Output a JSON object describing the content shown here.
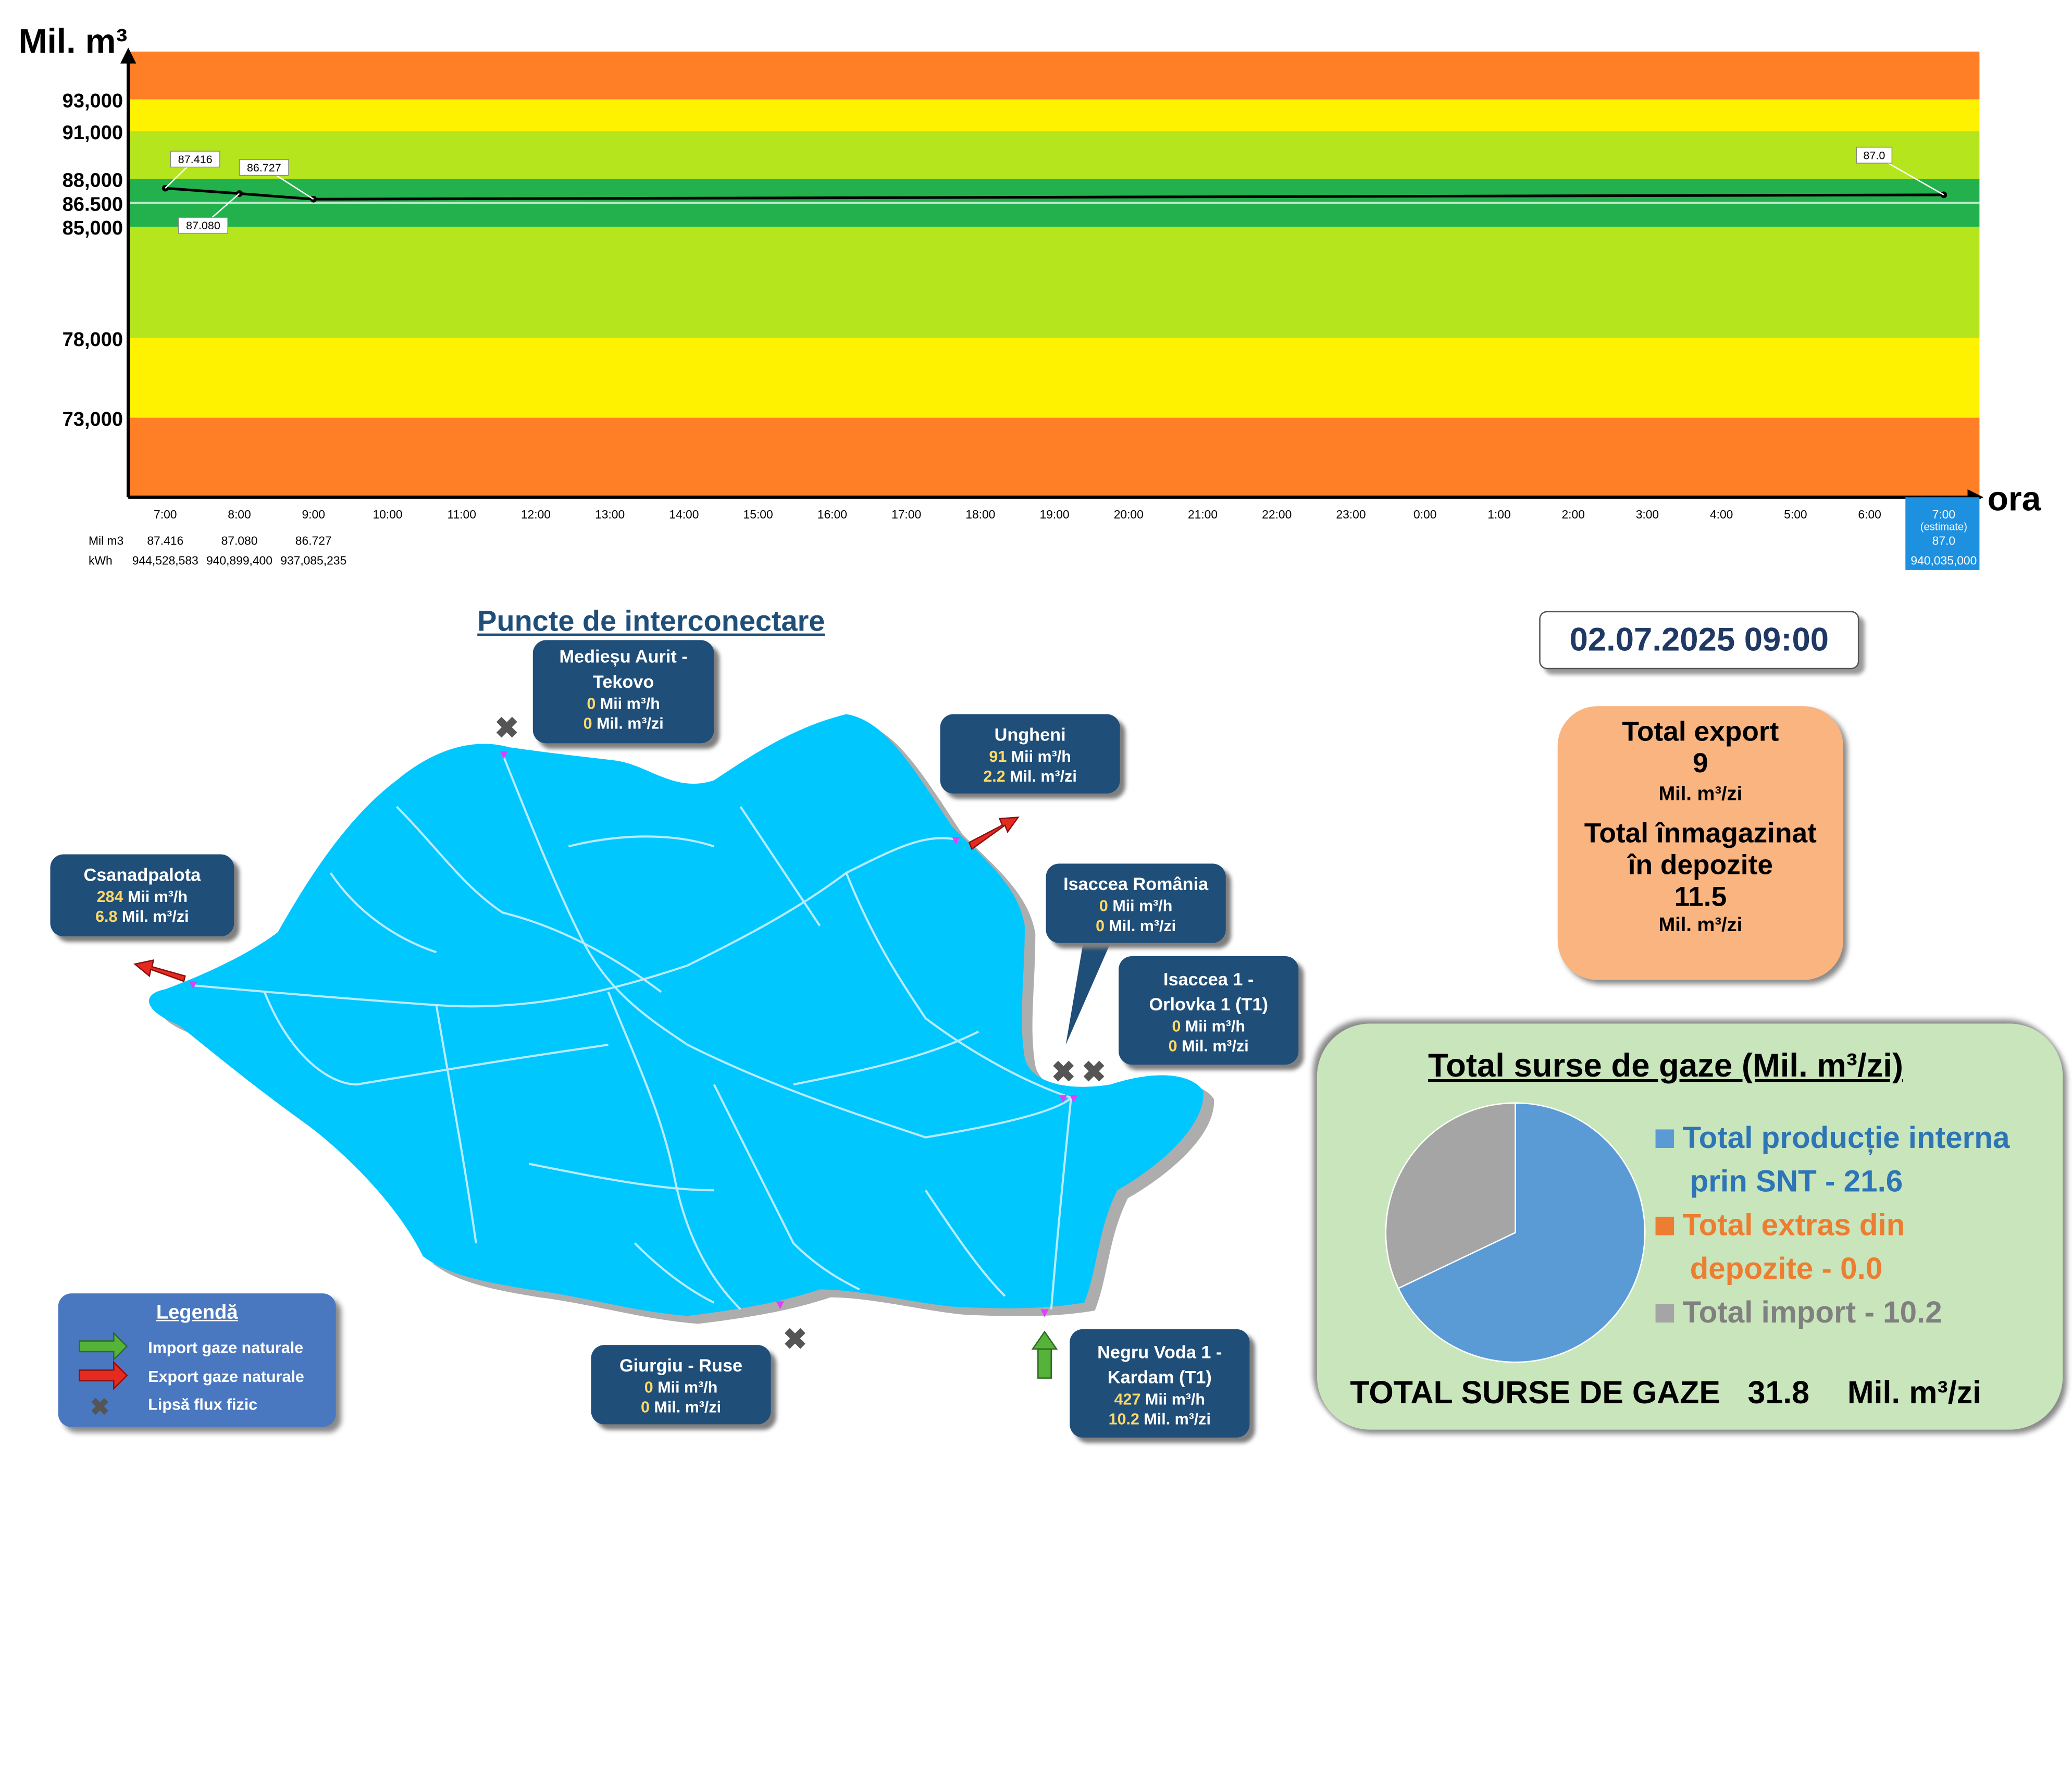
{
  "colors": {
    "orange": "#ff7f27",
    "yellow": "#fff200",
    "lime": "#b5e61d",
    "green": "#22b14c",
    "card": "#1f4e79",
    "map": "#00c8ff",
    "pie_production": "#5b9bd5",
    "pie_storage": "#ed7d31",
    "pie_import": "#a5a5a5"
  },
  "chart_data": {
    "type": "line",
    "ylabel": "Mil. m³",
    "xlabel": "ora",
    "ylim": [
      68000,
      96000
    ],
    "ytick_values": [
      73000,
      78000,
      85000,
      86500,
      88000,
      91000,
      93000
    ],
    "yticks": [
      "73,000",
      "78,000",
      "85,000",
      "86.500",
      "88,000",
      "91,000",
      "93,000"
    ],
    "bands": [
      {
        "from": 68000,
        "to": 73000,
        "color": "#ff7f27"
      },
      {
        "from": 73000,
        "to": 78000,
        "color": "#fff200"
      },
      {
        "from": 78000,
        "to": 85000,
        "color": "#b5e61d"
      },
      {
        "from": 85000,
        "to": 88000,
        "color": "#22b14c"
      },
      {
        "from": 88000,
        "to": 91000,
        "color": "#b5e61d"
      },
      {
        "from": 91000,
        "to": 93000,
        "color": "#fff200"
      },
      {
        "from": 93000,
        "to": 96000,
        "color": "#ff7f27"
      }
    ],
    "reference_line": 86500,
    "categories": [
      "7:00",
      "8:00",
      "9:00",
      "10:00",
      "11:00",
      "12:00",
      "13:00",
      "14:00",
      "15:00",
      "16:00",
      "17:00",
      "18:00",
      "19:00",
      "20:00",
      "21:00",
      "22:00",
      "23:00",
      "0:00",
      "1:00",
      "2:00",
      "3:00",
      "4:00",
      "5:00",
      "6:00",
      "7:00"
    ],
    "estimate_suffix": "(estimate)",
    "series": [
      {
        "values": [
          87416,
          87080,
          86727,
          null,
          null,
          null,
          null,
          null,
          null,
          null,
          null,
          null,
          null,
          null,
          null,
          null,
          null,
          null,
          null,
          null,
          null,
          null,
          null,
          null,
          87000
        ]
      }
    ],
    "point_labels": [
      "87.416",
      "87.080",
      "86.727",
      "87.0"
    ],
    "table_row_labels": [
      "Mil m3",
      "kWh"
    ],
    "table_mil_m3": [
      "87.416",
      "87.080",
      "86.727",
      "87.0"
    ],
    "table_kwh": [
      "944,528,583",
      "940,899,400",
      "937,085,235",
      "940,035,000"
    ]
  },
  "map": {
    "title": "Puncte de interconectare",
    "timestamp": "02.07.2025 09:00",
    "unit_h": "Mii  m³/h",
    "unit_zi": "Mil. m³/zi",
    "points": [
      {
        "name": "Medieșu Aurit -",
        "name2": "Tekovo",
        "mii": "0",
        "mil": "0"
      },
      {
        "name": "Ungheni",
        "name2": "",
        "mii": "91",
        "mil": "2.2"
      },
      {
        "name": "Csanadpalota",
        "name2": "",
        "mii": "284",
        "mil": "6.8"
      },
      {
        "name": "Isaccea România",
        "name2": "",
        "mii": "0",
        "mil": "0"
      },
      {
        "name": "Isaccea 1 -",
        "name2": "Orlovka 1 (T1)",
        "mii": "0",
        "mil": "0"
      },
      {
        "name": "Giurgiu - Ruse",
        "name2": "",
        "mii": "0",
        "mil": "0"
      },
      {
        "name": "Negru Voda 1 -",
        "name2": "Kardam (T1)",
        "mii": "427",
        "mil": "10.2"
      }
    ]
  },
  "legend": {
    "title": "Legendă",
    "import": "Import gaze naturale",
    "export": "Export gaze naturale",
    "none": "Lipsă flux fizic"
  },
  "summary": {
    "export_title": "Total export",
    "export_value": "9",
    "storage_title1": "Total înmagazinat",
    "storage_title2": "în depozite",
    "storage_value": "11.5",
    "unit": "Mil. m³/zi"
  },
  "sources": {
    "title": "Total surse de gaze  (Mil. m³/zi)",
    "pie": [
      {
        "label1": "Total producție interna",
        "label2": "prin SNT - 21.6",
        "value": 21.6,
        "color": "#5b9bd5"
      },
      {
        "label1": "Total extras din",
        "label2": "depozite - 0.0",
        "value": 0.0,
        "color": "#ed7d31"
      },
      {
        "label1": "Total import - 10.2",
        "label2": "",
        "value": 10.2,
        "color": "#a5a5a5"
      }
    ],
    "total_label": "TOTAL SURSE DE GAZE",
    "total_value": "31.8",
    "total_unit": "Mil. m³/zi"
  }
}
